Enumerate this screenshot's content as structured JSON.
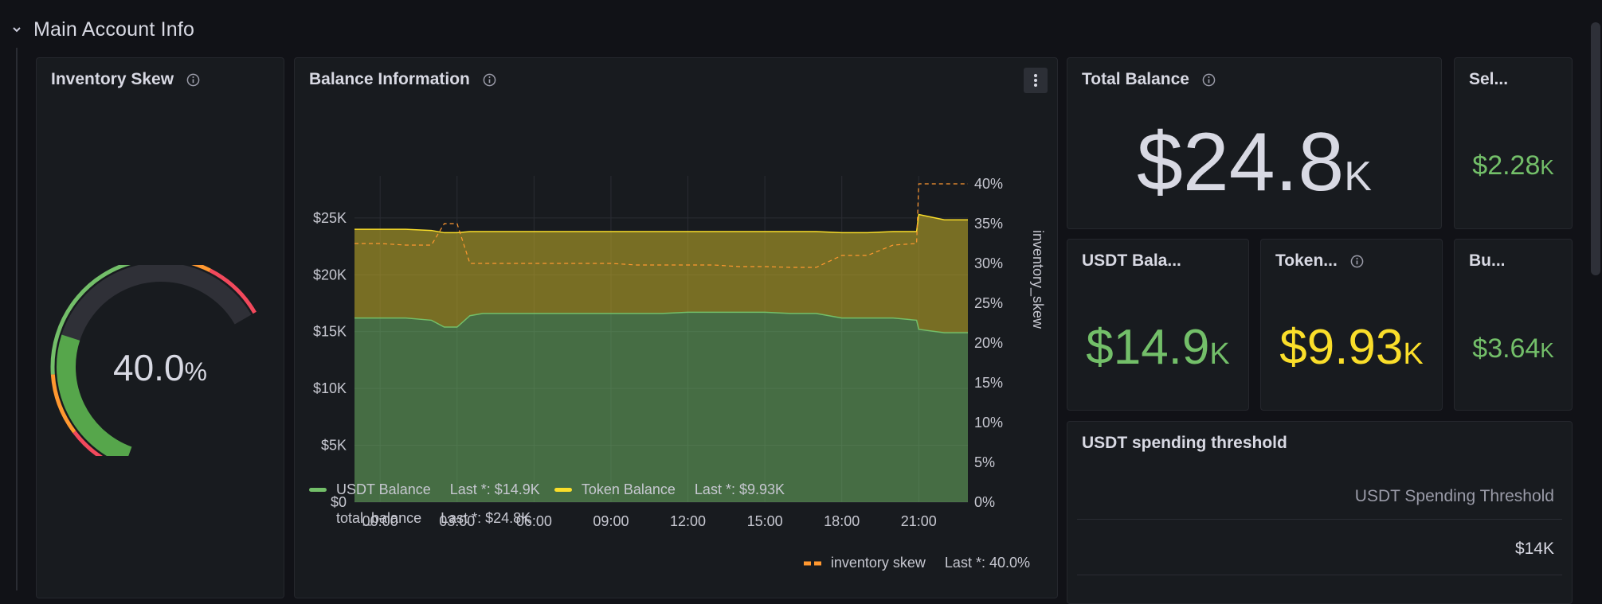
{
  "row": {
    "title": "Main Account Info"
  },
  "panels": {
    "inventory_skew": {
      "title": "Inventory Skew",
      "value": "40.0",
      "unit": "%",
      "gauge_fraction": 0.4
    },
    "balance_info": {
      "title": "Balance Information",
      "legend": [
        {
          "name": "USDT Balance",
          "last": "Last *: $14.9K",
          "color": "#73bf69"
        },
        {
          "name": "Token Balance",
          "last": "Last *: $9.93K",
          "color": "#fade2a"
        },
        {
          "name": "total_balance",
          "last": "Last *: $24.8K"
        },
        {
          "name": "inventory skew",
          "last": "Last *: 40.0%",
          "color": "#ff9830"
        }
      ]
    },
    "total_balance": {
      "title": "Total Balance",
      "value": "$24.8",
      "unit": "K",
      "color": "#d8d9e3"
    },
    "sel": {
      "title": "Sel...",
      "value": "$2.28",
      "unit": "K",
      "color": "#73bf69"
    },
    "usdt_balance": {
      "title": "USDT Bala...",
      "value": "$14.9",
      "unit": "K",
      "color": "#73bf69"
    },
    "token_balance": {
      "title": "Token...",
      "value": "$9.93",
      "unit": "K",
      "color": "#fade2a"
    },
    "bu": {
      "title": "Bu...",
      "value": "$3.64",
      "unit": "K",
      "color": "#73bf69"
    },
    "usdt_threshold": {
      "title": "USDT spending threshold",
      "column": "USDT Spending Threshold",
      "value": "$14K"
    }
  },
  "chart_data": {
    "type": "area",
    "x": [
      "23:00",
      "00:00",
      "01:00",
      "02:00",
      "02:30",
      "03:00",
      "03:30",
      "04:00",
      "05:00",
      "06:00",
      "07:00",
      "08:00",
      "09:00",
      "10:00",
      "11:00",
      "12:00",
      "13:00",
      "14:00",
      "15:00",
      "16:00",
      "17:00",
      "18:00",
      "19:00",
      "20:00",
      "20:55",
      "21:00",
      "22:00",
      "22:55"
    ],
    "series": [
      {
        "name": "USDT Balance",
        "axis": "left",
        "color": "#73bf69",
        "values": [
          16.2,
          16.2,
          16.2,
          16.0,
          15.4,
          15.4,
          16.4,
          16.6,
          16.6,
          16.6,
          16.6,
          16.6,
          16.6,
          16.6,
          16.6,
          16.7,
          16.7,
          16.7,
          16.7,
          16.6,
          16.6,
          16.2,
          16.2,
          16.2,
          16.0,
          15.2,
          14.9,
          14.9
        ]
      },
      {
        "name": "Token Balance",
        "axis": "left",
        "color": "#fade2a",
        "values": [
          7.8,
          7.8,
          7.8,
          7.9,
          8.3,
          8.3,
          7.4,
          7.2,
          7.2,
          7.2,
          7.2,
          7.2,
          7.2,
          7.2,
          7.2,
          7.1,
          7.1,
          7.1,
          7.1,
          7.2,
          7.2,
          7.5,
          7.5,
          7.6,
          7.8,
          10.1,
          9.93,
          9.93
        ]
      },
      {
        "name": "total_balance",
        "axis": "left",
        "values": [
          24.0,
          24.0,
          24.0,
          23.9,
          23.7,
          23.7,
          23.8,
          23.8,
          23.8,
          23.8,
          23.8,
          23.8,
          23.8,
          23.8,
          23.8,
          23.8,
          23.8,
          23.8,
          23.8,
          23.8,
          23.8,
          23.7,
          23.7,
          23.8,
          23.8,
          25.3,
          24.8,
          24.8
        ]
      },
      {
        "name": "inventory skew",
        "axis": "right",
        "color": "#ff9830",
        "style": "dashed",
        "values": [
          32.5,
          32.5,
          32.3,
          32.3,
          35.0,
          35.0,
          30.0,
          30.0,
          30.0,
          30.0,
          30.0,
          30.0,
          30.0,
          29.8,
          29.8,
          29.8,
          29.8,
          29.6,
          29.6,
          29.5,
          29.5,
          31.0,
          31.0,
          32.3,
          32.5,
          40.0,
          40.0,
          40.0
        ]
      }
    ],
    "x_ticks": [
      "00:00",
      "03:00",
      "06:00",
      "09:00",
      "12:00",
      "15:00",
      "18:00",
      "21:00"
    ],
    "y_left_ticks": [
      "$0",
      "$5K",
      "$10K",
      "$15K",
      "$20K",
      "$25K"
    ],
    "y_left_range": [
      0,
      28
    ],
    "y_right_ticks": [
      "0%",
      "5%",
      "10%",
      "15%",
      "20%",
      "25%",
      "30%",
      "35%",
      "40%"
    ],
    "y_right_range": [
      0,
      40
    ],
    "ylabel_right": "inventory_skew",
    "grid": true,
    "legend_placement": "bottom"
  }
}
